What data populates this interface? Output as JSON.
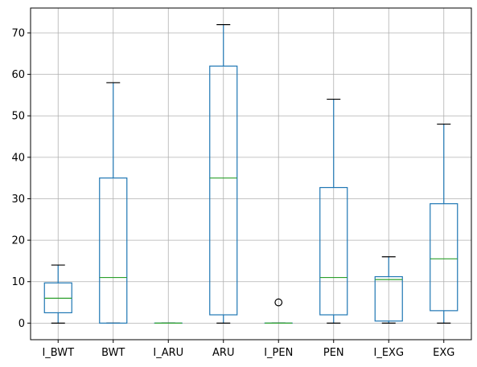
{
  "chart_data": {
    "type": "boxplot",
    "title": "",
    "xlabel": "",
    "ylabel": "",
    "ylim": [
      -4,
      76
    ],
    "yticks": [
      0,
      10,
      20,
      30,
      40,
      50,
      60,
      70
    ],
    "grid": true,
    "categories": [
      "I_BWT",
      "BWT",
      "I_ARU",
      "ARU",
      "I_PEN",
      "PEN",
      "I_EXG",
      "EXG"
    ],
    "boxes": [
      {
        "label": "I_BWT",
        "whisker_low": 0,
        "q1": 2.5,
        "median": 6,
        "q3": 9.7,
        "whisker_high": 14,
        "outliers": []
      },
      {
        "label": "BWT",
        "whisker_low": 0,
        "q1": 0,
        "median": 11,
        "q3": 35,
        "whisker_high": 58,
        "outliers": []
      },
      {
        "label": "I_ARU",
        "whisker_low": 0,
        "q1": 0,
        "median": 0,
        "q3": 0,
        "whisker_high": 0,
        "outliers": []
      },
      {
        "label": "ARU",
        "whisker_low": 0,
        "q1": 2,
        "median": 35,
        "q3": 62,
        "whisker_high": 72,
        "outliers": []
      },
      {
        "label": "I_PEN",
        "whisker_low": 0,
        "q1": 0,
        "median": 0,
        "q3": 0,
        "whisker_high": 0,
        "outliers": [
          5
        ]
      },
      {
        "label": "PEN",
        "whisker_low": 0,
        "q1": 2,
        "median": 11,
        "q3": 32.7,
        "whisker_high": 54,
        "outliers": []
      },
      {
        "label": "I_EXG",
        "whisker_low": 0,
        "q1": 0.5,
        "median": 10.5,
        "q3": 11.2,
        "whisker_high": 16,
        "outliers": []
      },
      {
        "label": "EXG",
        "whisker_low": 0,
        "q1": 3,
        "median": 15.5,
        "q3": 28.8,
        "whisker_high": 48,
        "outliers": []
      }
    ],
    "colors": {
      "box": "#1f77b4",
      "median": "#2ca02c",
      "cap": "#000000",
      "grid": "#b0b0b0",
      "axis": "#000000"
    }
  }
}
